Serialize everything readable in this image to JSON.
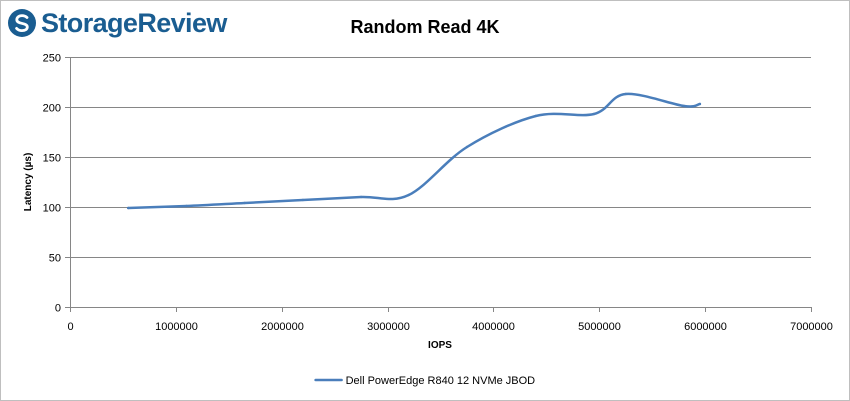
{
  "brand": {
    "name": "StorageReview",
    "color": "#1a5d91"
  },
  "chart_data": {
    "type": "line",
    "title": "Random Read 4K",
    "xlabel": "IOPS",
    "ylabel": "Latency (µs)",
    "xlim": [
      0,
      7000000
    ],
    "ylim": [
      0,
      250
    ],
    "x_ticks": [
      0,
      1000000,
      2000000,
      3000000,
      4000000,
      5000000,
      6000000,
      7000000
    ],
    "y_ticks": [
      0,
      50,
      100,
      150,
      200,
      250
    ],
    "grid": "horizontal",
    "legend_position": "bottom",
    "series": [
      {
        "name": "Dell PowerEdge R840 12 NVMe JBOD",
        "color": "#4a7ebb",
        "x": [
          550000,
          1100000,
          1650000,
          2200000,
          2750000,
          3200000,
          3750000,
          4400000,
          4950000,
          5250000,
          5800000,
          5950000
        ],
        "y": [
          99,
          101,
          104,
          107,
          110,
          112,
          160,
          191,
          193,
          213,
          201,
          203
        ]
      }
    ]
  }
}
